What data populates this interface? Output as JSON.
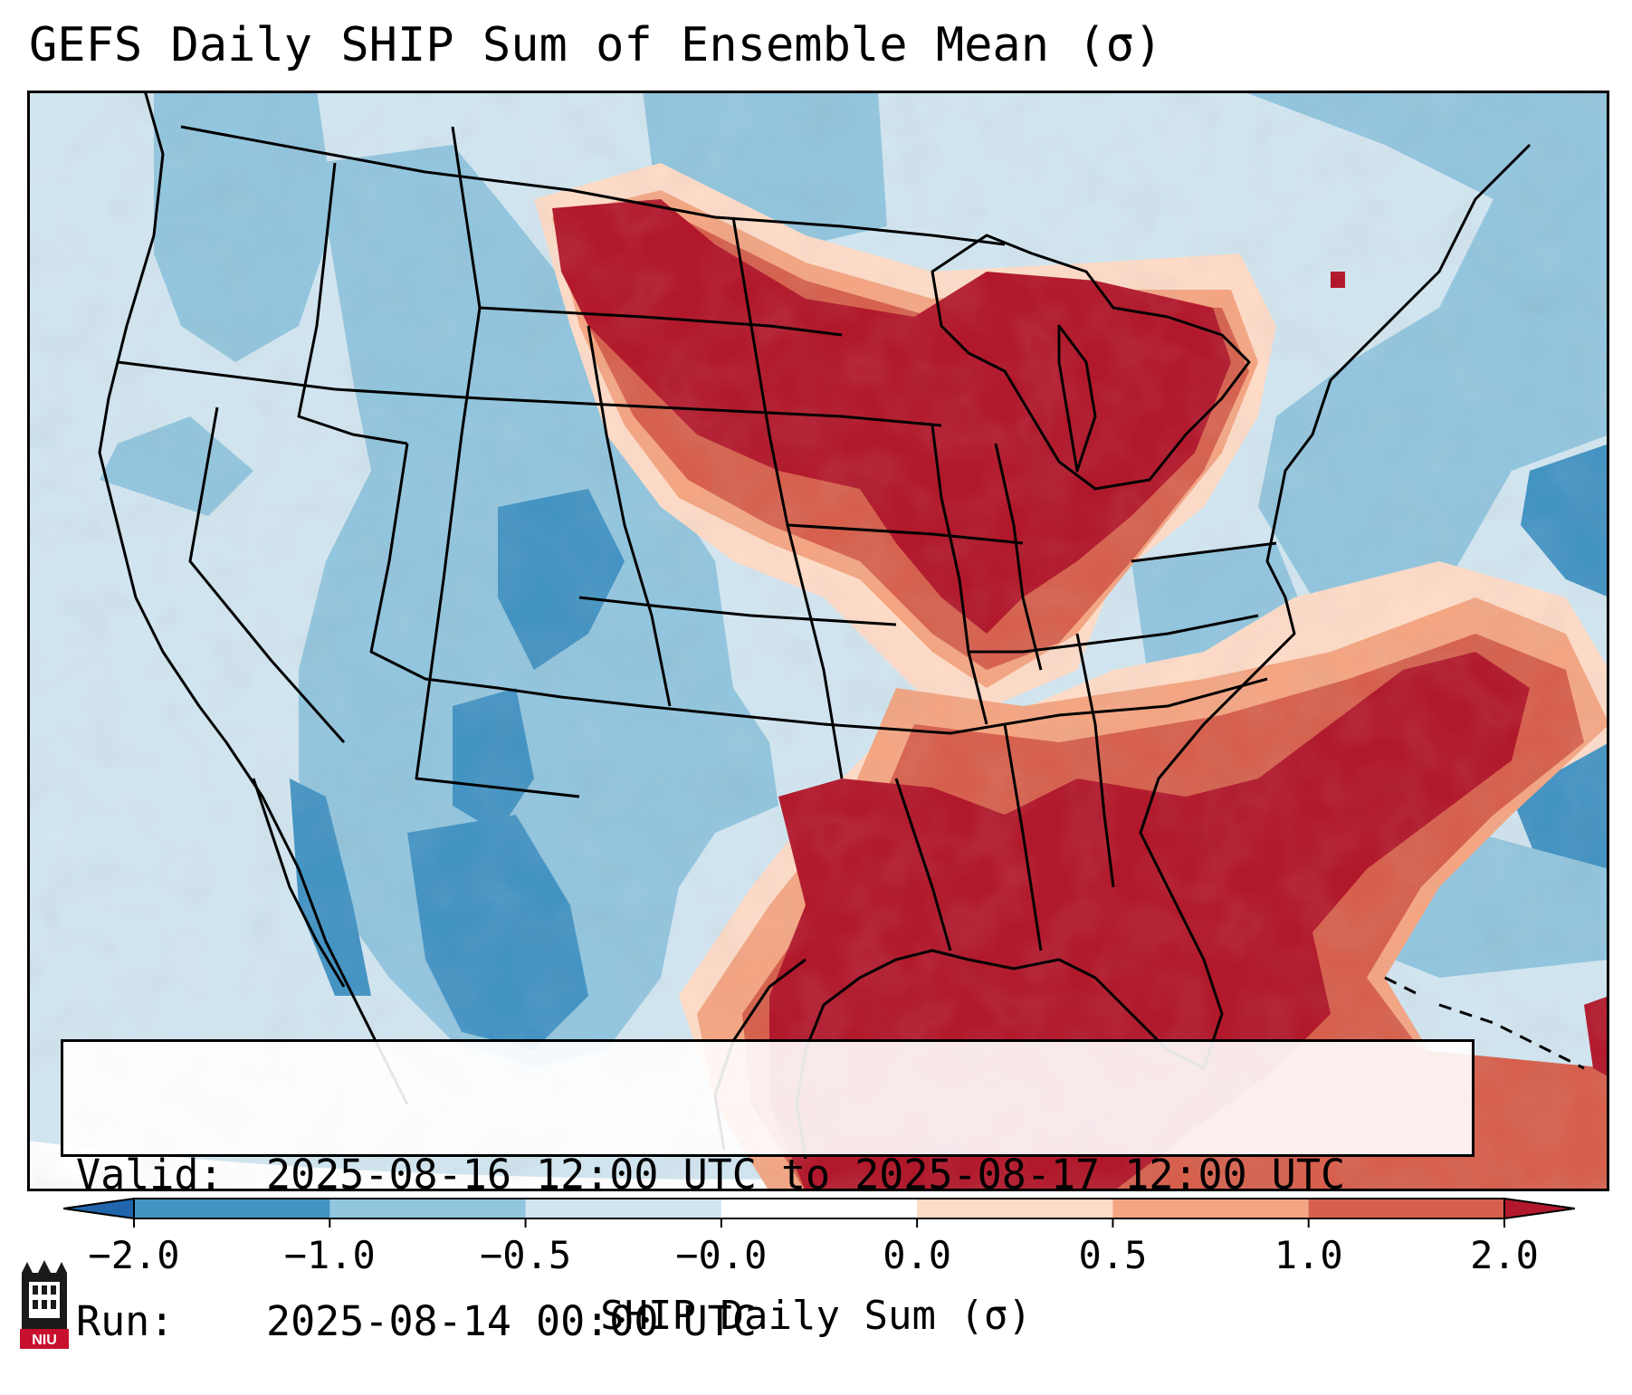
{
  "title": "GEFS Daily SHIP Sum of Ensemble Mean (σ)",
  "info": {
    "valid_label": "Valid:",
    "valid_value": "2025-08-16 12:00 UTC to 2025-08-17 12:00 UTC",
    "run_label": "Run:",
    "run_value": "2025-08-14 00:00 UTC"
  },
  "colorbar": {
    "label": "SHIP Daily Sum (σ)",
    "ticks": [
      "−2.0",
      "−1.0",
      "−0.5",
      "−0.0",
      "0.0",
      "0.5",
      "1.0",
      "2.0"
    ],
    "colors": [
      "#2166ac",
      "#4393c3",
      "#92c5de",
      "#d1e5f0",
      "#fddbc7",
      "#f4a582",
      "#d6604d",
      "#b2182b"
    ]
  },
  "logo": {
    "text": "NIU",
    "icon": "niu-tower-logo-icon",
    "color": "#c8102e"
  }
}
